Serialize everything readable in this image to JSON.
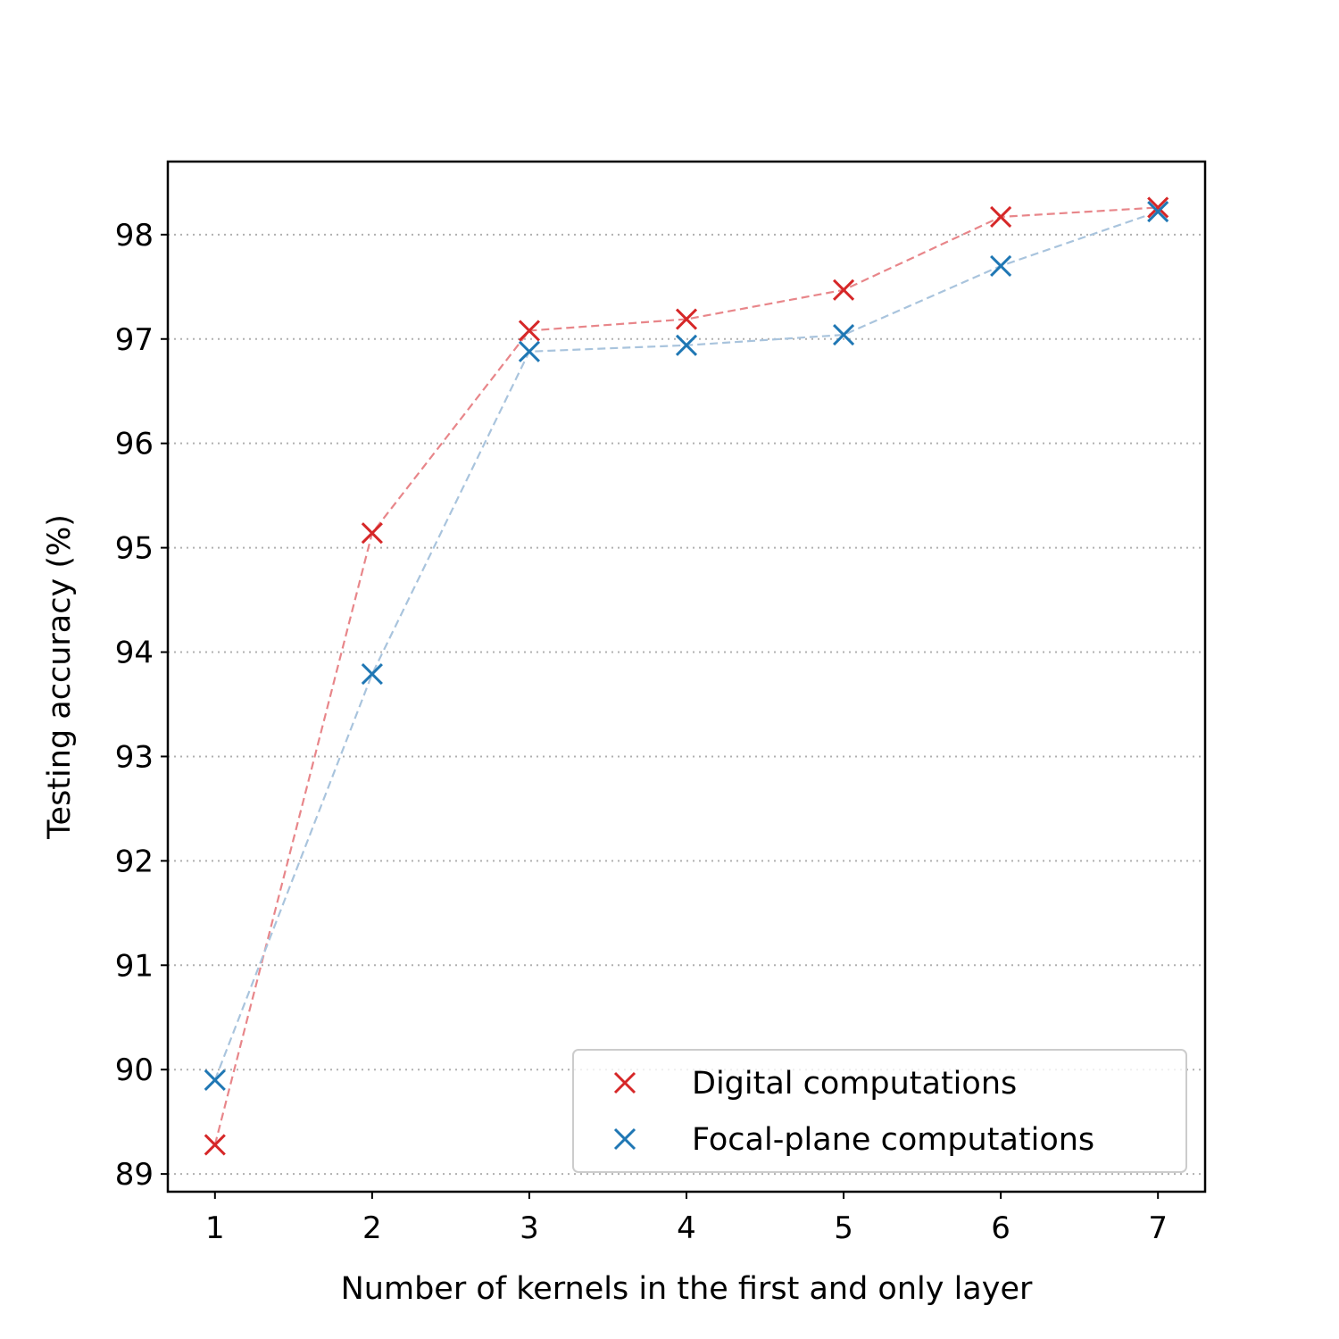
{
  "chart_data": {
    "type": "line",
    "title": "",
    "xlabel": "Number of kernels in the first and only layer",
    "ylabel": "Testing accuracy (%)",
    "x": [
      1,
      2,
      3,
      4,
      5,
      6,
      7
    ],
    "x_ticks": [
      "1",
      "2",
      "3",
      "4",
      "5",
      "6",
      "7"
    ],
    "xlim": [
      0.7,
      7.3
    ],
    "y_ticks": [
      "89",
      "90",
      "91",
      "92",
      "93",
      "94",
      "95",
      "96",
      "97",
      "98"
    ],
    "ylim": [
      88.83,
      98.7
    ],
    "grid": "horizontal dotted",
    "legend_position": "lower-right",
    "series": [
      {
        "name": "Digital computations",
        "color": "#d62728",
        "line_color": "#e8868a",
        "marker": "x",
        "values": [
          89.28,
          95.14,
          97.08,
          97.19,
          97.47,
          98.17,
          98.26
        ]
      },
      {
        "name": "Focal-plane computations",
        "color": "#1f77b4",
        "line_color": "#a9c4dd",
        "marker": "x",
        "values": [
          89.9,
          93.79,
          96.88,
          96.94,
          97.04,
          97.7,
          98.22
        ]
      }
    ]
  }
}
